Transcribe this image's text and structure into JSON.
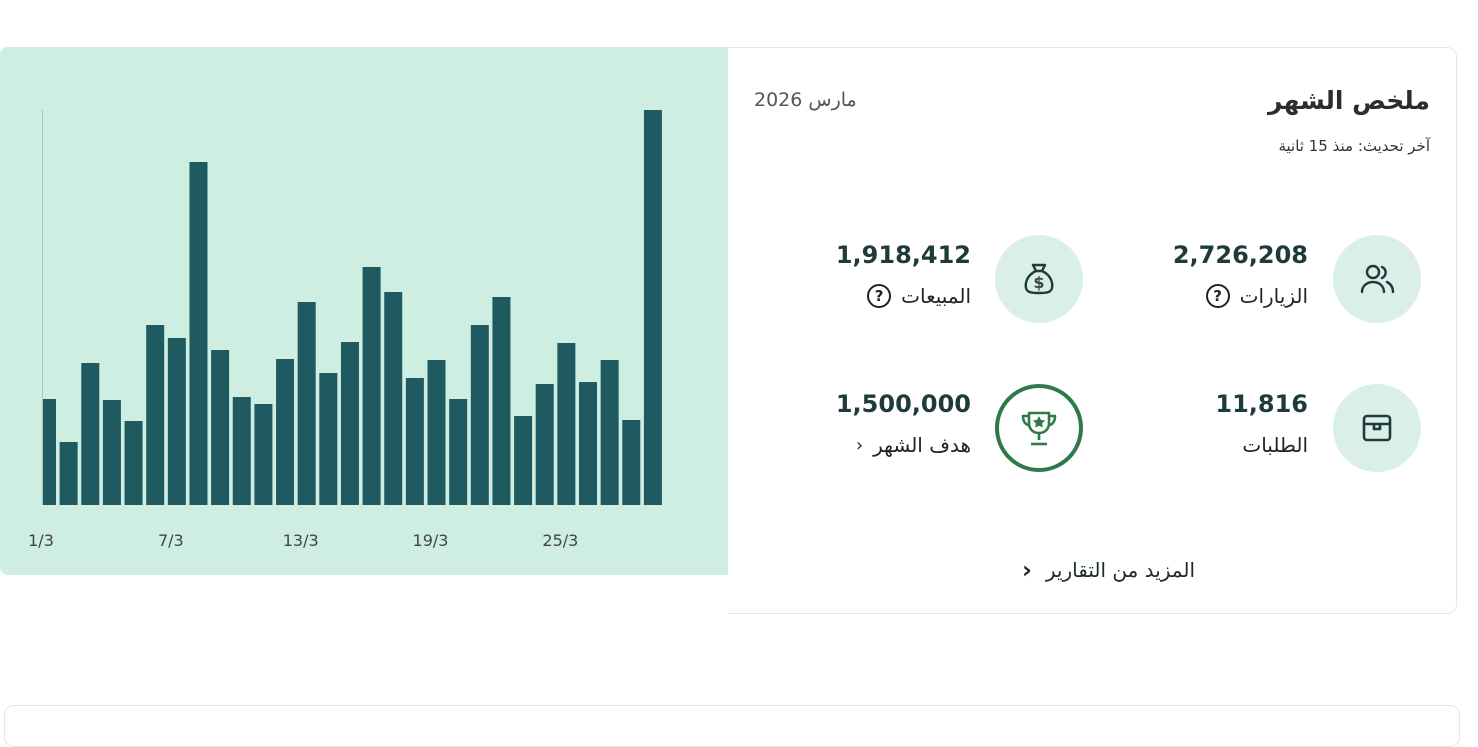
{
  "header": {
    "title": "ملخص الشهر",
    "period": "مارس 2026",
    "updated": "آخر تحديث: منذ 15 ثانية"
  },
  "metrics": [
    {
      "label": "الزيارات",
      "value": "2,726,208"
    },
    {
      "label": "المبيعات",
      "value": "1,918,412"
    },
    {
      "label": "الطلبات",
      "value": "11,816"
    },
    {
      "label": "هدف الشهر",
      "value": "1,500,000"
    }
  ],
  "link": "المزيد من التقارير",
  "chart_data": {
    "type": "bar",
    "color": "#1f5a60",
    "categories": [
      "1/3",
      null,
      null,
      null,
      null,
      null,
      "7/3",
      null,
      null,
      null,
      null,
      null,
      "13/3",
      null,
      null,
      null,
      null,
      null,
      "19/3",
      null,
      null,
      null,
      null,
      null,
      "25/3",
      null,
      null,
      null,
      null
    ],
    "values": [
      106,
      63,
      142,
      105,
      84,
      180,
      167,
      343,
      155,
      108,
      101,
      146,
      203,
      132,
      163,
      238,
      213,
      127,
      145,
      106,
      180,
      208,
      89,
      121,
      162,
      123,
      145,
      85,
      395
    ],
    "ylim": [
      0,
      400
    ]
  }
}
